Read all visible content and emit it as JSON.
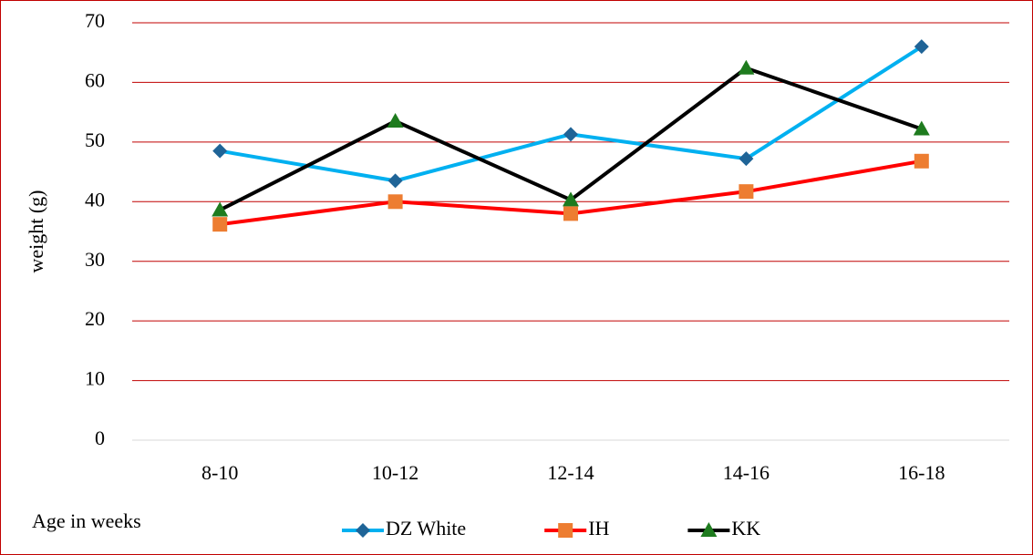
{
  "chart_data": {
    "type": "line",
    "xlabel": "Age in weeks",
    "ylabel": "weight (g)",
    "categories": [
      "8-10",
      "10-12",
      "12-14",
      "14-16",
      "16-18"
    ],
    "series": [
      {
        "name": "DZ White",
        "color": "#00b0f0",
        "marker": "diamond",
        "marker_color": "#1f6497",
        "values": [
          48.5,
          43.5,
          51.3,
          47.2,
          66.0
        ]
      },
      {
        "name": "IH",
        "color": "#ff0000",
        "marker": "square",
        "marker_color": "#ed7d31",
        "values": [
          36.2,
          40.0,
          38.0,
          41.7,
          46.8
        ]
      },
      {
        "name": "KK",
        "color": "#000000",
        "marker": "triangle",
        "marker_color": "#1e7b1e",
        "values": [
          38.6,
          53.5,
          40.3,
          62.4,
          52.2
        ]
      }
    ],
    "ylim": [
      0,
      70
    ],
    "yticks": [
      0,
      10,
      20,
      30,
      40,
      50,
      60,
      70
    ],
    "grid": true,
    "grid_color": "#c00000",
    "legend": "bottom"
  }
}
